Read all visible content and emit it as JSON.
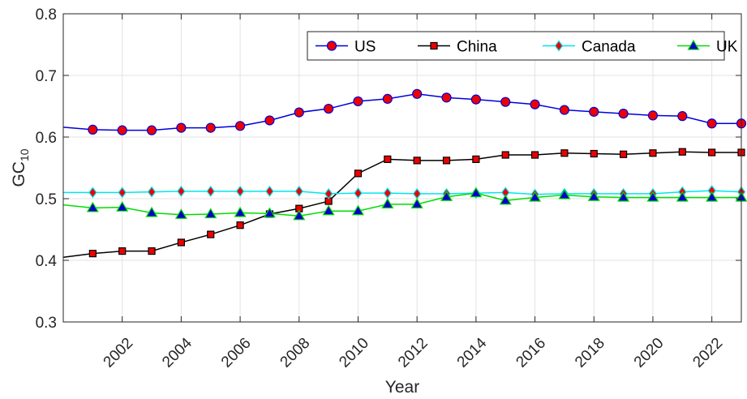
{
  "chart_data": {
    "type": "line",
    "title": "",
    "xlabel": "Year",
    "ylabel": "GC",
    "ylabel_subscript": "10",
    "xlim": [
      2000,
      2023
    ],
    "ylim": [
      0.3,
      0.8
    ],
    "x_ticks": [
      2002,
      2004,
      2006,
      2008,
      2010,
      2012,
      2014,
      2016,
      2018,
      2020,
      2022
    ],
    "x_tick_labels": [
      "2002",
      "2004",
      "2006",
      "2008",
      "2010",
      "2012",
      "2014",
      "2016",
      "2018",
      "2020",
      "2022"
    ],
    "y_ticks": [
      0.3,
      0.4,
      0.5,
      0.6,
      0.7,
      0.8
    ],
    "y_tick_labels": [
      "0.3",
      "0.4",
      "0.5",
      "0.6",
      "0.7",
      "0.8"
    ],
    "grid": true,
    "legend_position": "top-right",
    "x": [
      2000,
      2001,
      2002,
      2003,
      2004,
      2005,
      2006,
      2007,
      2008,
      2009,
      2010,
      2011,
      2012,
      2013,
      2014,
      2015,
      2016,
      2017,
      2018,
      2019,
      2020,
      2021,
      2022,
      2023
    ],
    "series": [
      {
        "name": "US",
        "line_color": "#0000dd",
        "marker": "circle",
        "marker_fill": "#ee0000",
        "values": [
          0.616,
          0.612,
          0.611,
          0.611,
          0.615,
          0.615,
          0.618,
          0.627,
          0.64,
          0.646,
          0.658,
          0.662,
          0.67,
          0.664,
          0.661,
          0.657,
          0.653,
          0.644,
          0.641,
          0.638,
          0.635,
          0.634,
          0.622,
          0.622
        ]
      },
      {
        "name": "China",
        "line_color": "#000000",
        "marker": "square",
        "marker_fill": "#ee0000",
        "values": [
          0.405,
          0.411,
          0.415,
          0.415,
          0.429,
          0.442,
          0.457,
          0.475,
          0.484,
          0.496,
          0.541,
          0.564,
          0.562,
          0.562,
          0.564,
          0.571,
          0.571,
          0.574,
          0.573,
          0.572,
          0.574,
          0.576,
          0.575,
          0.575
        ]
      },
      {
        "name": "Canada",
        "line_color": "#00e5ee",
        "marker": "diamond",
        "marker_fill": "#ee0000",
        "values": [
          0.51,
          0.51,
          0.51,
          0.511,
          0.512,
          0.512,
          0.512,
          0.512,
          0.512,
          0.508,
          0.509,
          0.509,
          0.508,
          0.508,
          0.509,
          0.51,
          0.507,
          0.508,
          0.508,
          0.508,
          0.508,
          0.511,
          0.513,
          0.511
        ]
      },
      {
        "name": "UK",
        "line_color": "#00dd00",
        "marker": "triangle",
        "marker_fill": "#0000cc",
        "values": [
          0.49,
          0.485,
          0.486,
          0.477,
          0.474,
          0.475,
          0.477,
          0.476,
          0.472,
          0.48,
          0.48,
          0.491,
          0.491,
          0.503,
          0.509,
          0.497,
          0.502,
          0.506,
          0.503,
          0.502,
          0.502,
          0.502,
          0.502,
          0.502
        ]
      }
    ]
  }
}
